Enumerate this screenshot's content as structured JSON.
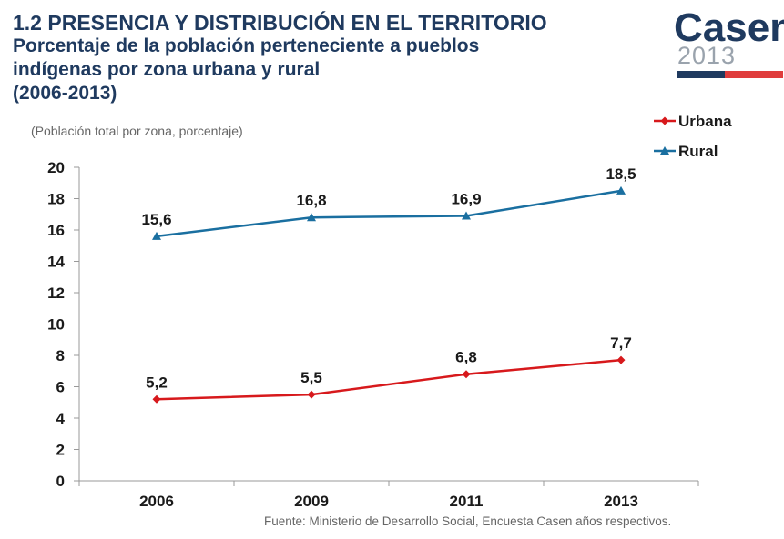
{
  "header": {
    "title_line1": "1.2 PRESENCIA Y DISTRIBUCIÓN EN EL TERRITORIO",
    "title_line2": "Porcentaje de la población perteneciente a pueblos",
    "title_line3": "indígenas por zona urbana y rural",
    "title_line4": "(2006-2013)"
  },
  "logo": {
    "word": "Casen",
    "year": "2013"
  },
  "subtitle": "(Población total por zona, porcentaje)",
  "source": "Fuente: Ministerio de Desarrollo Social, Encuesta Casen años respectivos.",
  "colors": {
    "urbana": "#d7191c",
    "rural": "#1a6fa0",
    "axis": "#999999",
    "title": "#1f3a5f"
  },
  "chart_data": {
    "type": "line",
    "title": "Porcentaje de la población perteneciente a pueblos indígenas por zona urbana y rural (2006-2013)",
    "ylabel": "(Población total por zona, porcentaje)",
    "xlabel": "",
    "categories": [
      "2006",
      "2009",
      "2011",
      "2013"
    ],
    "yticks": [
      0,
      2,
      4,
      6,
      8,
      10,
      12,
      14,
      16,
      18,
      20
    ],
    "ylim": [
      0,
      20
    ],
    "grid": false,
    "legend_position": "top-right",
    "series": [
      {
        "name": "Urbana",
        "marker": "diamond",
        "values": [
          5.2,
          5.5,
          6.8,
          7.7
        ],
        "labels": [
          "5,2",
          "5,5",
          "6,8",
          "7,7"
        ]
      },
      {
        "name": "Rural",
        "marker": "triangle",
        "values": [
          15.6,
          16.8,
          16.9,
          18.5
        ],
        "labels": [
          "15,6",
          "16,8",
          "16,9",
          "18,5"
        ]
      }
    ]
  }
}
